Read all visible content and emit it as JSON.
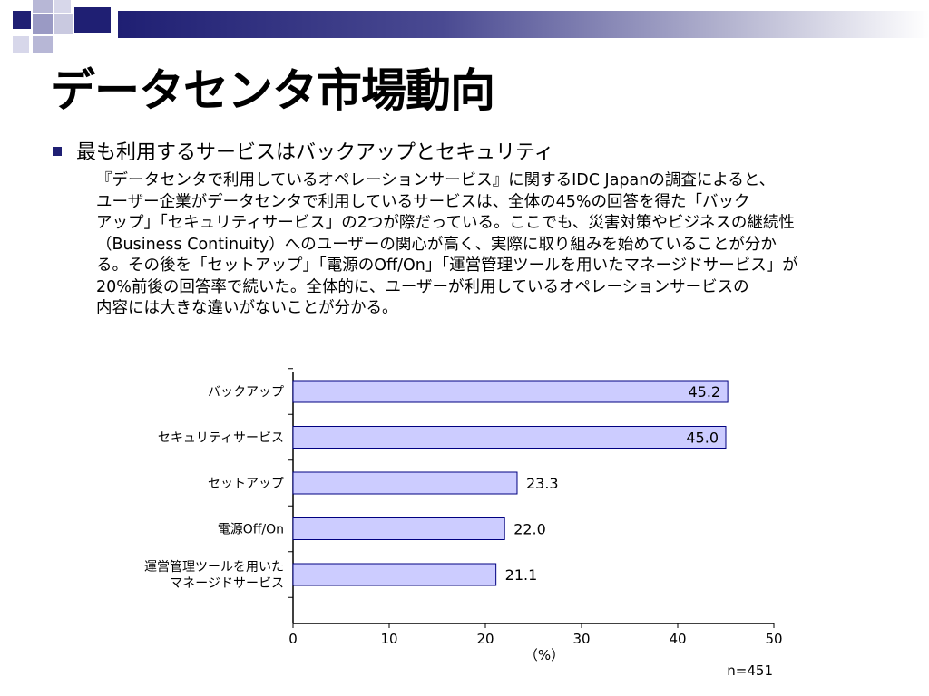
{
  "slide": {
    "title": "データセンタ市場動向",
    "bullet": "最も利用するサービスはバックアップとセキュリティ",
    "paragraph_lines": [
      "『データセンタで利用しているオペレーションサービス』に関するIDC Japanの調査によると、",
      "ユーザー企業がデータセンタで利用しているサービスは、全体の45%の回答を得た「バック",
      "アップ」「セキュリティサービス」の2つが際だっている。ここでも、災害対策やビジネスの継続性",
      "（Business Continuity）へのユーザーの関心が高く、実際に取り組みを始めていることが分か",
      "る。その後を「セットアップ」「電源のOff/On」「運営管理ツールを用いたマネージドサービス」が",
      "20%前後の回答率で続いた。全体的に、ユーザーが利用しているオペレーションサービスの",
      "内容には大きな違いがないことが分かる。"
    ]
  },
  "chart_data": {
    "type": "bar",
    "orientation": "horizontal",
    "categories": [
      [
        "バックアップ"
      ],
      [
        "セキュリティサービス"
      ],
      [
        "セットアップ"
      ],
      [
        "電源Off/On"
      ],
      [
        "運営管理ツールを用いた",
        "マネージドサービス"
      ]
    ],
    "values": [
      45.2,
      45.0,
      23.3,
      22.0,
      21.1
    ],
    "value_labels": [
      "45.2",
      "45.0",
      "23.3",
      "22.0",
      "21.1"
    ],
    "xlim": [
      0,
      50
    ],
    "xticks": [
      "0",
      "10",
      "20",
      "30",
      "40",
      "50"
    ],
    "xlabel": "（%）",
    "note": "n=451",
    "grid": false,
    "bar_color": "#ccccff",
    "bar_border": "#000080"
  }
}
